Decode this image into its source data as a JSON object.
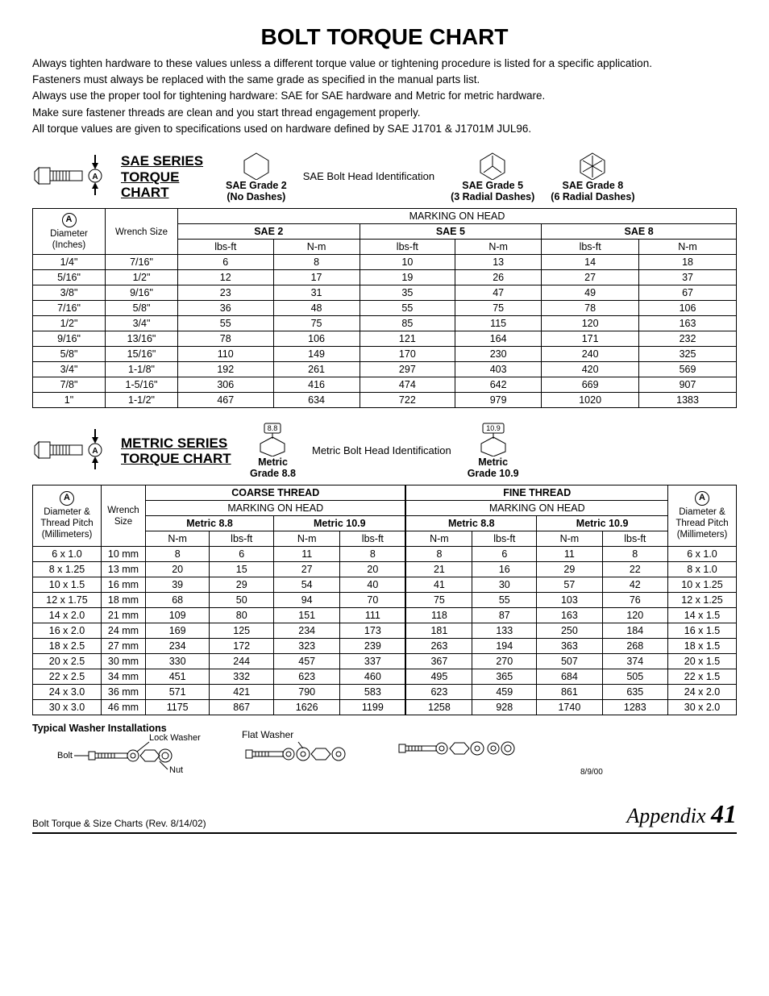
{
  "title": "BOLT TORQUE CHART",
  "intro": [
    "Always tighten hardware to these values unless a different torque value or tightening procedure is listed for a specific application.",
    "Fasteners must always be replaced with the same grade as specified in the manual parts list.",
    "Always use the proper tool for tightening hardware: SAE for SAE hardware and Metric for metric hardware.",
    "Make sure fastener threads are clean and you start thread engagement properly.",
    "All torque values are given to specifications used on hardware defined by SAE J1701 & J1701M JUL96."
  ],
  "sae": {
    "series_title": "SAE SERIES TORQUE CHART",
    "head_id_label": "SAE Bolt Head Identification",
    "grades": [
      {
        "name": "SAE Grade 2",
        "sub": "(No Dashes)",
        "dashes": 0
      },
      {
        "name": "SAE Grade 5",
        "sub": "(3 Radial Dashes)",
        "dashes": 3
      },
      {
        "name": "SAE Grade 8",
        "sub": "(6 Radial Dashes)",
        "dashes": 6
      }
    ],
    "marking_label": "MARKING ON HEAD",
    "col_diameter": "Diameter (Inches)",
    "col_wrench": "Wrench Size",
    "grade_cols": [
      "SAE 2",
      "SAE 5",
      "SAE 8"
    ],
    "unit_cols": [
      "lbs-ft",
      "N-m"
    ],
    "rows": [
      [
        "1/4\"",
        "7/16\"",
        "6",
        "8",
        "10",
        "13",
        "14",
        "18"
      ],
      [
        "5/16\"",
        "1/2\"",
        "12",
        "17",
        "19",
        "26",
        "27",
        "37"
      ],
      [
        "3/8\"",
        "9/16\"",
        "23",
        "31",
        "35",
        "47",
        "49",
        "67"
      ],
      [
        "7/16\"",
        "5/8\"",
        "36",
        "48",
        "55",
        "75",
        "78",
        "106"
      ],
      [
        "1/2\"",
        "3/4\"",
        "55",
        "75",
        "85",
        "115",
        "120",
        "163"
      ],
      [
        "9/16\"",
        "13/16\"",
        "78",
        "106",
        "121",
        "164",
        "171",
        "232"
      ],
      [
        "5/8\"",
        "15/16\"",
        "110",
        "149",
        "170",
        "230",
        "240",
        "325"
      ],
      [
        "3/4\"",
        "1-1/8\"",
        "192",
        "261",
        "297",
        "403",
        "420",
        "569"
      ],
      [
        "7/8\"",
        "1-5/16\"",
        "306",
        "416",
        "474",
        "642",
        "669",
        "907"
      ],
      [
        "1\"",
        "1-1/2\"",
        "467",
        "634",
        "722",
        "979",
        "1020",
        "1383"
      ]
    ]
  },
  "metric": {
    "series_title": "METRIC SERIES TORQUE CHART",
    "head_id_label": "Metric Bolt Head Identification",
    "grades": [
      {
        "name": "Metric",
        "sub": "Grade 8.8",
        "mark": "8.8"
      },
      {
        "name": "Metric",
        "sub": "Grade 10.9",
        "mark": "10.9"
      }
    ],
    "coarse_label": "COARSE THREAD",
    "fine_label": "FINE THREAD",
    "marking_label": "MARKING ON HEAD",
    "col_diameter": "Diameter & Thread Pitch (Millimeters)",
    "col_wrench": "Wrench Size",
    "grade_cols": [
      "Metric 8.8",
      "Metric 10.9"
    ],
    "unit_cols": [
      "N-m",
      "lbs-ft"
    ],
    "rows": [
      [
        "6 x 1.0",
        "10 mm",
        "8",
        "6",
        "11",
        "8",
        "8",
        "6",
        "11",
        "8",
        "6 x 1.0"
      ],
      [
        "8 x 1.25",
        "13 mm",
        "20",
        "15",
        "27",
        "20",
        "21",
        "16",
        "29",
        "22",
        "8 x 1.0"
      ],
      [
        "10 x 1.5",
        "16 mm",
        "39",
        "29",
        "54",
        "40",
        "41",
        "30",
        "57",
        "42",
        "10 x 1.25"
      ],
      [
        "12 x 1.75",
        "18 mm",
        "68",
        "50",
        "94",
        "70",
        "75",
        "55",
        "103",
        "76",
        "12 x 1.25"
      ],
      [
        "14 x 2.0",
        "21 mm",
        "109",
        "80",
        "151",
        "111",
        "118",
        "87",
        "163",
        "120",
        "14 x 1.5"
      ],
      [
        "16 x 2.0",
        "24 mm",
        "169",
        "125",
        "234",
        "173",
        "181",
        "133",
        "250",
        "184",
        "16 x 1.5"
      ],
      [
        "18 x 2.5",
        "27 mm",
        "234",
        "172",
        "323",
        "239",
        "263",
        "194",
        "363",
        "268",
        "18 x 1.5"
      ],
      [
        "20 x 2.5",
        "30 mm",
        "330",
        "244",
        "457",
        "337",
        "367",
        "270",
        "507",
        "374",
        "20 x 1.5"
      ],
      [
        "22 x 2.5",
        "34 mm",
        "451",
        "332",
        "623",
        "460",
        "495",
        "365",
        "684",
        "505",
        "22 x 1.5"
      ],
      [
        "24 x 3.0",
        "36 mm",
        "571",
        "421",
        "790",
        "583",
        "623",
        "459",
        "861",
        "635",
        "24 x 2.0"
      ],
      [
        "30 x 3.0",
        "46 mm",
        "1175",
        "867",
        "1626",
        "1199",
        "1258",
        "928",
        "1740",
        "1283",
        "30 x 2.0"
      ]
    ]
  },
  "washer": {
    "title": "Typical Washer Installations",
    "labels": {
      "bolt": "Bolt",
      "lock": "Lock Washer",
      "nut": "Nut",
      "flat": "Flat Washer"
    },
    "date": "8/9/00"
  },
  "footer": {
    "left": "Bolt Torque & Size Charts (Rev. 8/14/02)",
    "right_label": "Appendix",
    "right_num": "41"
  },
  "style": {
    "text_color": "#000000",
    "bg_color": "#ffffff",
    "border_color": "#000000",
    "title_fontsize": 28,
    "body_fontsize": 13,
    "table_fontsize": 12.5
  }
}
